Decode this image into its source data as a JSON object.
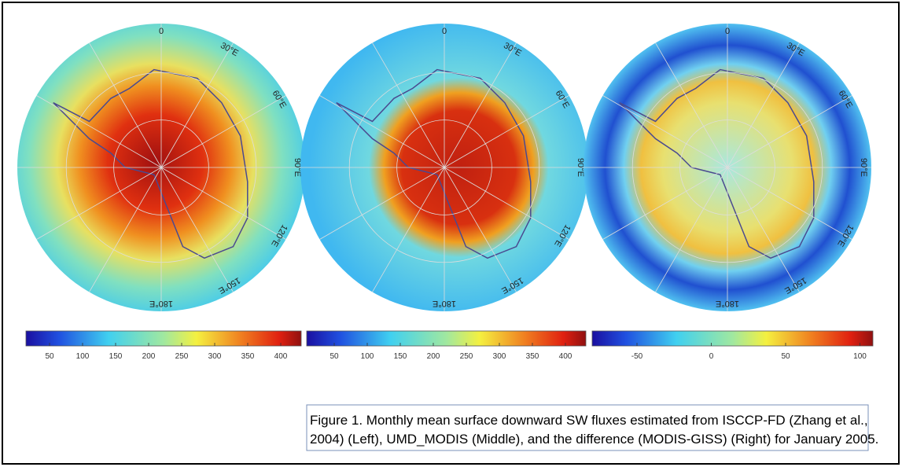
{
  "panels": [
    {
      "meridians": [
        "0",
        "30°E",
        "60°E",
        "90°E",
        "120°E",
        "150°E",
        "180°E"
      ],
      "colorbar_ticks": [
        "50",
        "100",
        "150",
        "200",
        "250",
        "300",
        "350",
        "400"
      ]
    },
    {
      "meridians": [
        "0",
        "30°E",
        "60°E",
        "90°E",
        "120°E",
        "150°E",
        "180°E"
      ],
      "colorbar_ticks": [
        "50",
        "100",
        "150",
        "200",
        "250",
        "300",
        "350",
        "400"
      ]
    },
    {
      "meridians": [
        "0",
        "30°E",
        "60°E",
        "90°E",
        "120°E",
        "150°E",
        "180°E"
      ],
      "colorbar_ticks": [
        "-50",
        "0",
        "50",
        "100"
      ]
    }
  ],
  "caption": [
    "Figure 1. Monthly mean surface downward SW fluxes estimated from ISCCP-FD (Zhang et al.,",
    "2004) (Left), UMD_MODIS (Middle), and the difference (MODIS-GISS) (Right) for January 2005."
  ]
}
